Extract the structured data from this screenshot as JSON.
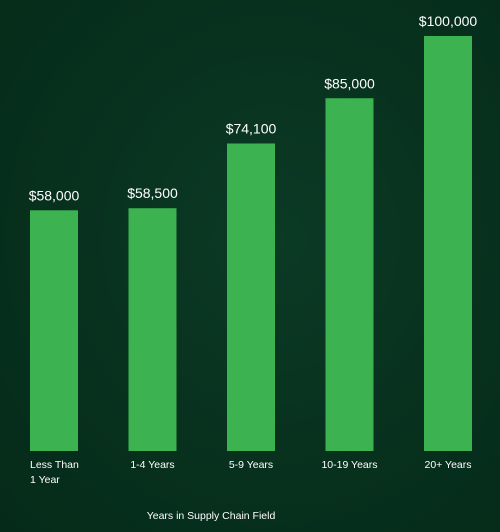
{
  "chart_data": {
    "type": "bar",
    "categories": [
      "Less Than 1 Year",
      "1-4 Years",
      "5-9 Years",
      "10-19 Years",
      "20+ Years"
    ],
    "category_lines": [
      [
        "Less Than",
        "1 Year"
      ],
      [
        "1-4 Years"
      ],
      [
        "5-9 Years"
      ],
      [
        "10-19 Years"
      ],
      [
        "20+ Years"
      ]
    ],
    "values": [
      58000,
      58500,
      74100,
      85000,
      100000
    ],
    "value_labels": [
      "$58,000",
      "$58,500",
      "$74,100",
      "$85,000",
      "$100,000"
    ],
    "title": "",
    "xlabel": "Years in Supply Chain Field",
    "ylabel": "",
    "ylim": [
      0,
      100000
    ],
    "grid": false,
    "colors": {
      "bar": "#3cb350",
      "background": "#08311f",
      "text": "#ffffff"
    }
  }
}
